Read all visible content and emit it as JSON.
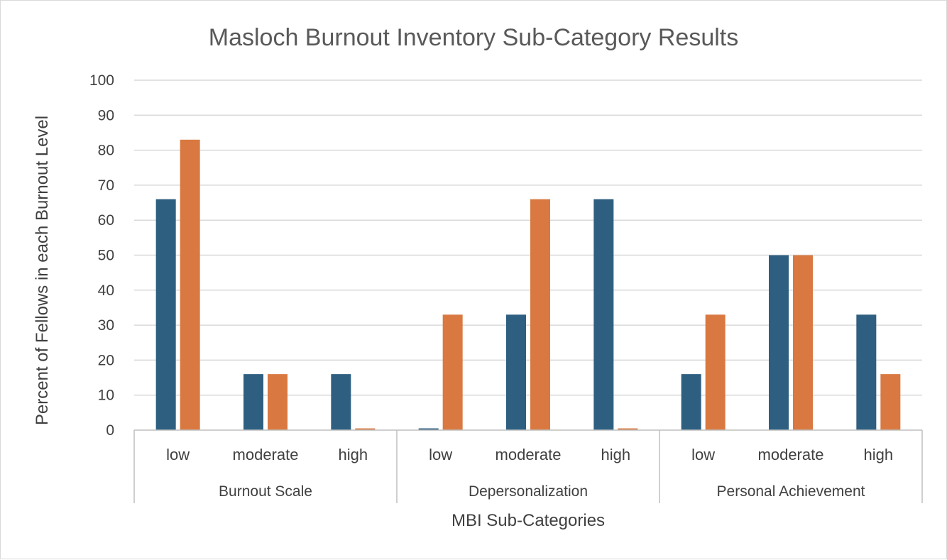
{
  "chart_data": {
    "type": "bar",
    "title": "Masloch Burnout Inventory Sub-Category Results",
    "xlabel": "MBI Sub-Categories",
    "ylabel": "Percent of Fellows in each Burnout Level",
    "ylim": [
      0,
      100
    ],
    "yticks": [
      "0",
      "10",
      "20",
      "30",
      "40",
      "50",
      "60",
      "70",
      "80",
      "90",
      "100"
    ],
    "grid": true,
    "legend": "none",
    "groups": [
      {
        "label": "Burnout Scale",
        "categories": [
          "low",
          "moderate",
          "high"
        ]
      },
      {
        "label": "Depersonalization",
        "categories": [
          "low",
          "moderate",
          "high"
        ]
      },
      {
        "label": "Personal Achievement",
        "categories": [
          "low",
          "moderate",
          "high"
        ]
      }
    ],
    "categories": [
      "low",
      "moderate",
      "high",
      "low",
      "moderate",
      "high",
      "low",
      "moderate",
      "high"
    ],
    "series": [
      {
        "values": [
          66,
          16,
          16,
          0.5,
          33,
          66,
          16,
          50,
          33
        ],
        "color": "#2e5f80"
      },
      {
        "values": [
          83,
          16,
          0.5,
          33,
          66,
          0.5,
          33,
          50,
          16
        ],
        "color": "#d97941"
      }
    ],
    "colors": {
      "gridline": "#d9d9d9",
      "axis": "#bfbfbf",
      "text": "#404040",
      "title": "#595959"
    }
  }
}
